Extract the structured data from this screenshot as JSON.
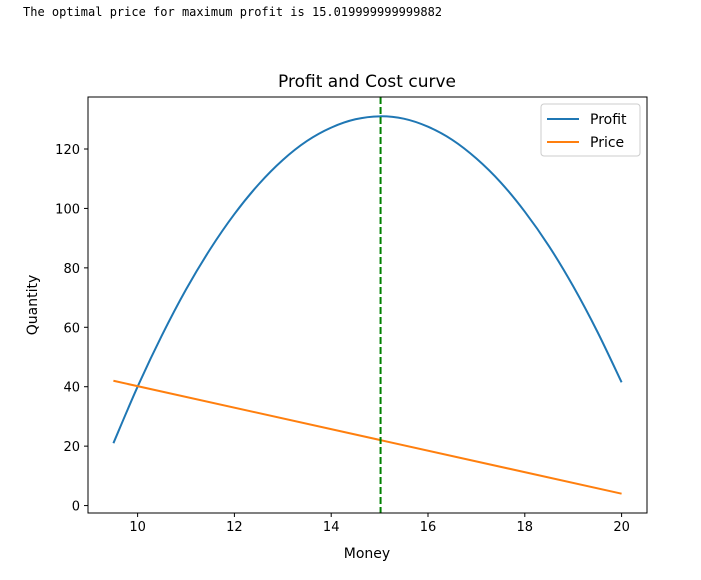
{
  "output_text": "The optimal price for maximum profit is 15.019999999999882",
  "chart_data": {
    "type": "line",
    "title": "Profit and Cost curve",
    "xlabel": "Money",
    "ylabel": "Quantity",
    "xlim": [
      8.975,
      20.525
    ],
    "ylim": [
      -2.5,
      137.5
    ],
    "xticks": [
      10,
      12,
      14,
      16,
      18,
      20
    ],
    "yticks": [
      0,
      20,
      40,
      60,
      80,
      100,
      120
    ],
    "grid": false,
    "legend_position": "top-right",
    "series": [
      {
        "name": "Profit",
        "color": "#1f77b4",
        "x": [
          9.5,
          10,
          10.5,
          11,
          11.5,
          12,
          12.5,
          13,
          13.5,
          14,
          14.5,
          15,
          15.5,
          16,
          16.5,
          17,
          17.5,
          18,
          18.5,
          19,
          19.5,
          20
        ],
        "y": [
          21.0,
          40.0,
          57.2,
          72.7,
          86.3,
          98.1,
          108.1,
          116.3,
          122.7,
          127.2,
          130.0,
          131.0,
          130.2,
          127.5,
          123.1,
          116.8,
          108.8,
          98.9,
          87.3,
          73.8,
          58.5,
          41.5
        ]
      },
      {
        "name": "Price",
        "color": "#ff7f0e",
        "x": [
          9.5,
          20
        ],
        "y": [
          42,
          4
        ]
      }
    ],
    "vline": {
      "x": 15.02,
      "color": "#008000",
      "style": "dashed"
    }
  }
}
